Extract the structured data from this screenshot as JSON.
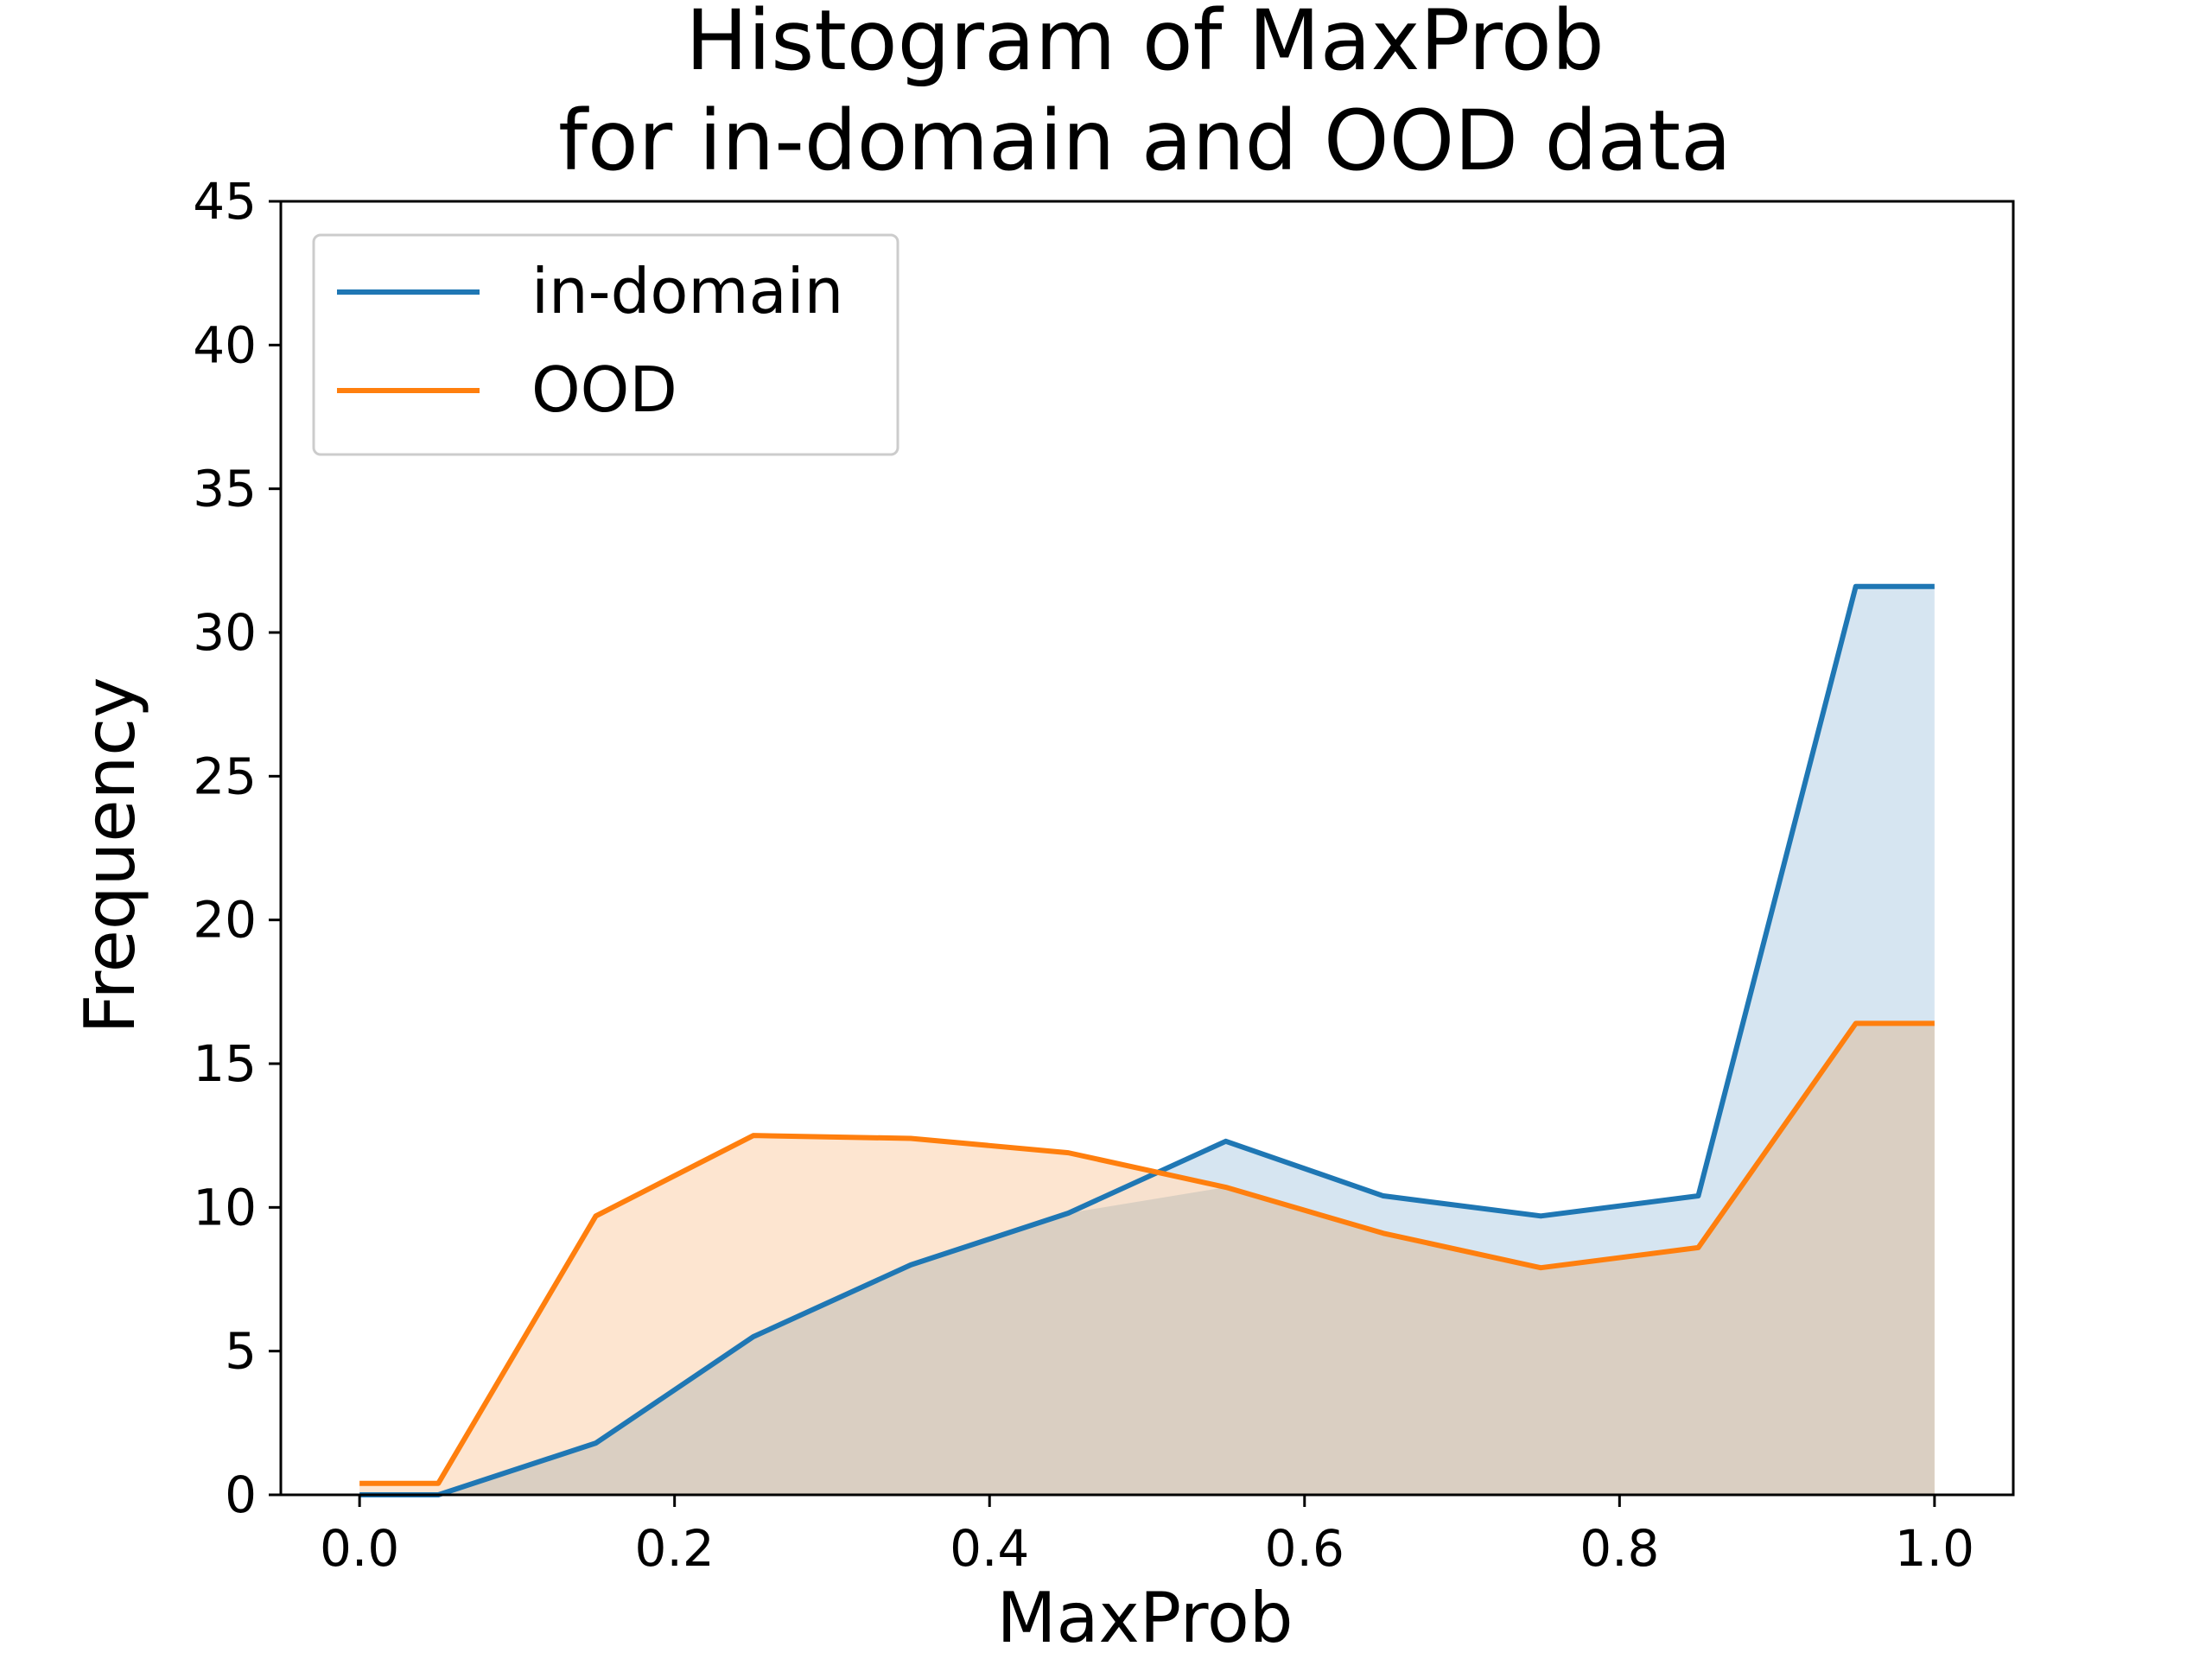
{
  "chart_data": {
    "type": "area",
    "title": "Histogram of MaxProb",
    "subtitle": "for in-domain and OOD data",
    "xlabel": "MaxProb",
    "ylabel": "Frequency",
    "xlim": [
      -0.05,
      1.05
    ],
    "ylim": [
      0,
      45
    ],
    "xticks": [
      "0.0",
      "0.2",
      "0.4",
      "0.6",
      "0.8",
      "1.0"
    ],
    "yticks": [
      "0",
      "5",
      "10",
      "15",
      "20",
      "25",
      "30",
      "35",
      "40",
      "45"
    ],
    "legend_position": "upper-left",
    "grid": false,
    "x": [
      0.0,
      0.05,
      0.15,
      0.25,
      0.35,
      0.45,
      0.55,
      0.65,
      0.75,
      0.85,
      0.95,
      1.0
    ],
    "series": [
      {
        "name": "in-domain",
        "color": "#1f77b4",
        "fill": "#cfe0ee",
        "values": [
          0.0,
          0.0,
          1.8,
          5.5,
          8.0,
          9.8,
          12.3,
          10.4,
          9.7,
          10.4,
          31.6,
          31.6
        ]
      },
      {
        "name": "OOD",
        "color": "#ff7f0e",
        "fill": "#fde0c8",
        "values": [
          0.4,
          0.4,
          9.7,
          12.5,
          12.4,
          11.9,
          10.7,
          9.1,
          7.9,
          8.6,
          16.4,
          16.4
        ]
      }
    ]
  }
}
